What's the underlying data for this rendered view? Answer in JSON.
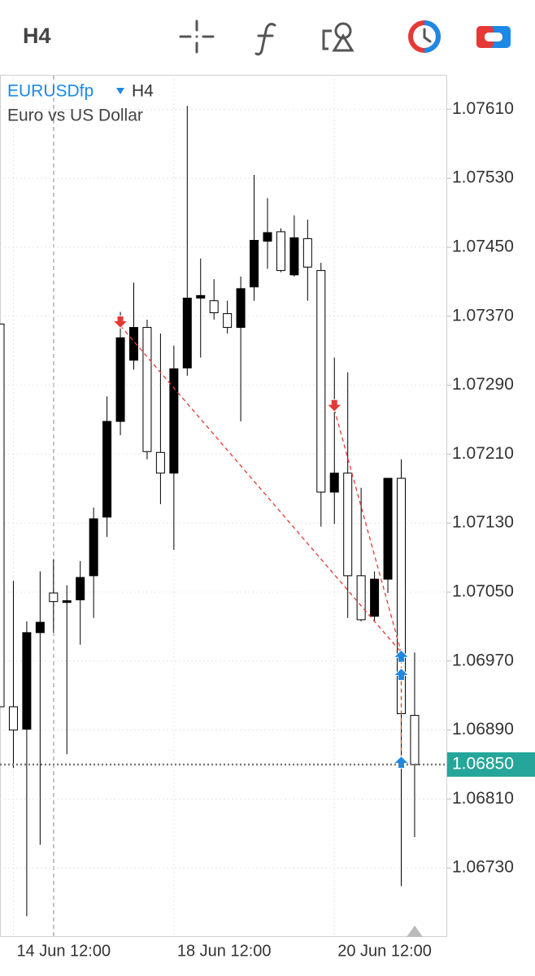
{
  "toolbar": {
    "timeframe": "H4"
  },
  "chart_data": {
    "type": "candlestick",
    "symbol": "EURUSDfp",
    "timeframe": "H4",
    "subtitle": "Euro vs US Dollar",
    "x": [
      null,
      "14 Jun 12:00",
      null,
      null,
      null,
      null,
      null,
      null,
      null,
      null,
      null,
      null,
      null,
      "18 Jun 12:00",
      null,
      null,
      null,
      null,
      null,
      null,
      null,
      null,
      null,
      null,
      null,
      "20 Jun 12:00",
      null,
      null,
      null,
      null,
      null,
      null
    ],
    "open": [
      1.07361,
      1.06917,
      1.06891,
      1.07003,
      1.07049,
      1.07038,
      1.07041,
      1.07069,
      1.07137,
      1.07248,
      1.07319,
      1.07357,
      1.07212,
      1.07188,
      1.0731,
      1.07391,
      1.07388,
      1.07373,
      1.07357,
      1.07404,
      1.07457,
      1.07468,
      1.07418,
      1.0746,
      1.07423,
      1.07166,
      1.07188,
      1.07069,
      1.07022,
      1.07065,
      1.07182,
      1.06907
    ],
    "high": [
      1.07361,
      1.07063,
      1.07016,
      1.07074,
      1.07088,
      1.07058,
      1.07086,
      1.07148,
      1.07277,
      1.07375,
      1.07409,
      1.07366,
      1.0735,
      1.07336,
      1.07614,
      1.07437,
      1.07413,
      1.07388,
      1.07416,
      1.07534,
      1.07507,
      1.07472,
      1.07487,
      1.07482,
      1.07432,
      1.07322,
      1.07305,
      1.07171,
      1.07074,
      1.07182,
      1.07204,
      1.0698
    ],
    "low": [
      1.06917,
      1.06846,
      1.06674,
      1.06757,
      1.07003,
      1.06862,
      1.06989,
      1.0702,
      1.07114,
      1.07232,
      1.07308,
      1.07204,
      1.07152,
      1.07099,
      1.07301,
      1.07322,
      1.07366,
      1.0735,
      1.07248,
      1.07388,
      1.07425,
      1.07421,
      1.07416,
      1.07388,
      1.07126,
      1.07129,
      1.0702,
      1.07016,
      1.07016,
      1.07049,
      1.06709,
      1.06766
    ],
    "close": [
      1.06917,
      1.0689,
      1.07003,
      1.07015,
      1.07039,
      1.0704,
      1.07067,
      1.07135,
      1.07248,
      1.07345,
      1.07357,
      1.07213,
      1.07188,
      1.07309,
      1.07391,
      1.07394,
      1.07374,
      1.07357,
      1.07402,
      1.07458,
      1.07467,
      1.07423,
      1.07461,
      1.07427,
      1.07166,
      1.07188,
      1.07069,
      1.07018,
      1.07065,
      1.07182,
      1.06909,
      1.0685
    ],
    "up_color": "#000000",
    "down_color": "#ffffff",
    "ylim": [
      1.0665,
      1.0765
    ],
    "yticks": [
      {
        "value": 1.0761,
        "label": "1.07610"
      },
      {
        "value": 1.0753,
        "label": "1.07530"
      },
      {
        "value": 1.0745,
        "label": "1.07450"
      },
      {
        "value": 1.0737,
        "label": "1.07370"
      },
      {
        "value": 1.0729,
        "label": "1.07290"
      },
      {
        "value": 1.0721,
        "label": "1.07210"
      },
      {
        "value": 1.0713,
        "label": "1.07130"
      },
      {
        "value": 1.0705,
        "label": "1.07050"
      },
      {
        "value": 1.0697,
        "label": "1.06970"
      },
      {
        "value": 1.0689,
        "label": "1.06890"
      },
      {
        "value": 1.0681,
        "label": "1.06810"
      },
      {
        "value": 1.0673,
        "label": "1.06730"
      }
    ],
    "current_price": {
      "value": 1.0685,
      "label": "1.06850"
    },
    "grid": true,
    "signals": [
      {
        "side": "sell",
        "index": 9,
        "price": 1.07359,
        "color": "#e53935"
      },
      {
        "side": "sell",
        "index": 25,
        "price": 1.07262,
        "color": "#e53935"
      },
      {
        "side": "buy",
        "index": 30,
        "price": 1.0698,
        "color": "#1e88e5"
      },
      {
        "side": "buy",
        "index": 30,
        "price": 1.06959,
        "color": "#1e88e5"
      },
      {
        "side": "buy",
        "index": 30,
        "price": 1.06857,
        "color": "#1e88e5"
      }
    ]
  }
}
